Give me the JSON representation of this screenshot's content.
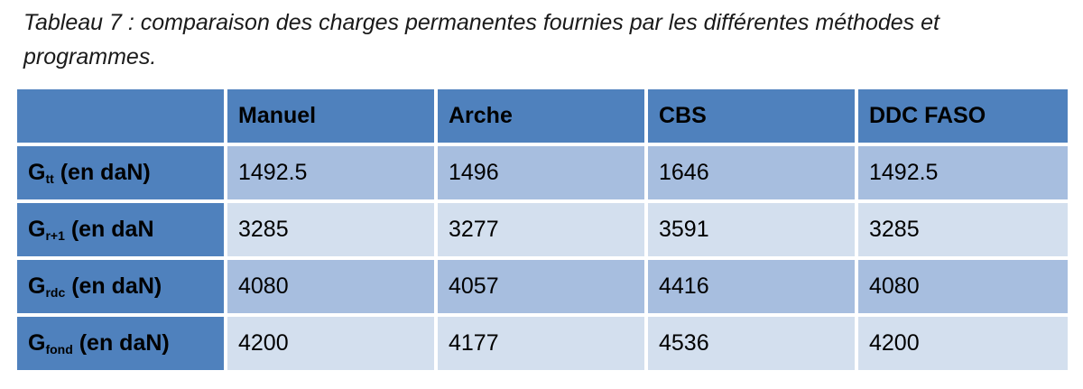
{
  "caption": "Tableau 7 : comparaison des charges permanentes fournies par les différentes méthodes et programmes.",
  "table": {
    "corner": "",
    "columns": [
      "Manuel",
      "Arche",
      "CBS",
      "DDC FASO"
    ],
    "rows": [
      {
        "label_main": "G",
        "label_sub": "tt",
        "label_rest": " (en daN)",
        "values": [
          "1492.5",
          "1496",
          "1646",
          "1492.5"
        ]
      },
      {
        "label_main": "G",
        "label_sub": "r+1",
        "label_rest": " (en daN",
        "values": [
          "3285",
          "3277",
          "3591",
          "3285"
        ]
      },
      {
        "label_main": "G",
        "label_sub": "rdc",
        "label_rest": " (en daN)",
        "values": [
          "4080",
          "4057",
          "4416",
          "4080"
        ]
      },
      {
        "label_main": "G",
        "label_sub": "fond",
        "label_rest": " (en daN)",
        "values": [
          "4200",
          "4177",
          "4536",
          "4200"
        ]
      }
    ]
  },
  "colors": {
    "header": "#4f81bd",
    "row_dark": "#a7bedf",
    "row_light": "#d3dfee"
  }
}
